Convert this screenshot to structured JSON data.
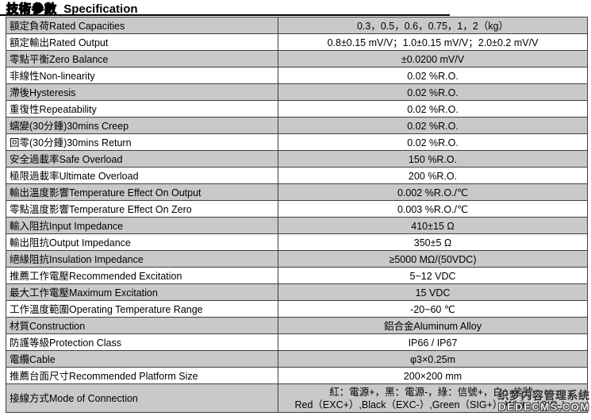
{
  "page": {
    "title_cn": "技術參數",
    "title_en": "Specification"
  },
  "table": {
    "rows": [
      {
        "label": "額定負荷Rated Capacities",
        "value": "0.3，0.5，0.6，0.75，1，2（kg）"
      },
      {
        "label": "額定輸出Rated Output",
        "value": "0.8±0.15 mV/V；1.0±0.15 mV/V；2.0±0.2 mV/V"
      },
      {
        "label": "零點平衡Zero Balance",
        "value": "±0.0200 mV/V"
      },
      {
        "label": "非線性Non-linearity",
        "value": "0.02 %R.O."
      },
      {
        "label": "滯後Hysteresis",
        "value": "0.02 %R.O."
      },
      {
        "label": "重復性Repeatability",
        "value": "0.02 %R.O."
      },
      {
        "label": "蠕變(30分鍾)30mins Creep",
        "value": "0.02 %R.O."
      },
      {
        "label": "回零(30分鍾)30mins Return",
        "value": "0.02 %R.O."
      },
      {
        "label": "安全過載率Safe Overload",
        "value": "150 %R.O."
      },
      {
        "label": "極限過載率Ultimate Overload",
        "value": "200 %R.O."
      },
      {
        "label": "輸出溫度影響Temperature Effect On Output",
        "value": "0.002 %R.O./℃"
      },
      {
        "label": "零點溫度影響Temperature Effect On Zero",
        "value": "0.003 %R.O./℃"
      },
      {
        "label": "輸入阻抗Input Impedance",
        "value": "410±15 Ω"
      },
      {
        "label": "輸出阻抗Output Impedance",
        "value": "350±5 Ω"
      },
      {
        "label": "絕緣阻抗Insulation Impedance",
        "value": "≥5000 MΩ/(50VDC)"
      },
      {
        "label": "推薦工作電壓Recommended Excitation",
        "value": "5~12 VDC"
      },
      {
        "label": "最大工作電壓Maximum Excitation",
        "value": "15 VDC"
      },
      {
        "label": "工作溫度範圍Operating Temperature Range",
        "value": "-20~60 ℃"
      },
      {
        "label": "材質Construction",
        "value": "鋁合金Aluminum Alloy"
      },
      {
        "label": "防護等級Protection Class",
        "value": "IP66 / IP67"
      },
      {
        "label": "電纜Cable",
        "value": "φ3×0.25m"
      },
      {
        "label": "推薦台面尺寸Recommended Platform Size",
        "value": "200×200 mm"
      },
      {
        "label": "接線方式Mode of Connection",
        "value": "紅：電源+，黑：電源-，綠：信號+，白：信號-",
        "value2": "Red（EXC+）,Black（EXC-）,Green（SIG+）,White（SIG-）"
      }
    ]
  },
  "watermark": {
    "line1": "织梦内容管理系统",
    "line2": "DEDECMS.COM"
  },
  "colors": {
    "row_alt": "#c9c9c9",
    "border": "#3f3f3f",
    "title_rule": "#000000"
  }
}
